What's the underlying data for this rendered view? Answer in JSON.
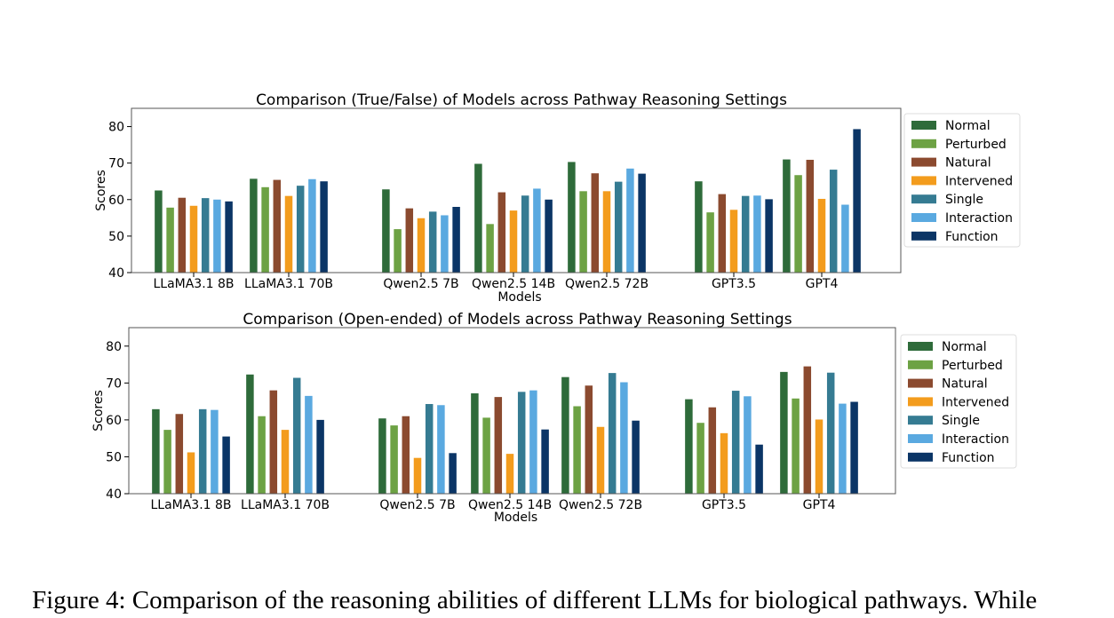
{
  "chart_data": [
    {
      "type": "bar",
      "title": "Comparison (True/False) of Models across Pathway Reasoning Settings",
      "xlabel": "Models",
      "ylabel": "Scores",
      "ylim": [
        40,
        85
      ],
      "yticks": [
        40,
        50,
        60,
        70,
        80
      ],
      "grid": false,
      "legend_position": "right",
      "categories": [
        "LLaMA3.1 8B",
        "LLaMA3.1 70B",
        "Qwen2.5 7B",
        "Qwen2.5 14B",
        "Qwen2.5 72B",
        "GPT3.5",
        "GPT4"
      ],
      "series": [
        {
          "name": "Normal",
          "color": "#2e6b3a",
          "values": [
            62.5,
            65.7,
            62.8,
            69.8,
            70.3,
            65.0,
            71.0
          ]
        },
        {
          "name": "Perturbed",
          "color": "#6da244",
          "values": [
            57.8,
            63.4,
            51.9,
            53.3,
            62.3,
            56.5,
            66.7
          ]
        },
        {
          "name": "Natural",
          "color": "#8b4a2f",
          "values": [
            60.5,
            65.4,
            57.6,
            62.0,
            67.2,
            61.5,
            70.9
          ]
        },
        {
          "name": "Intervened",
          "color": "#f39c1d",
          "values": [
            58.3,
            61.0,
            54.9,
            57.0,
            62.3,
            57.2,
            60.2
          ]
        },
        {
          "name": "Single",
          "color": "#357b92",
          "values": [
            60.4,
            63.8,
            56.7,
            61.1,
            64.9,
            61.0,
            68.2
          ]
        },
        {
          "name": "Interaction",
          "color": "#5aa9e0",
          "values": [
            60.0,
            65.6,
            55.7,
            63.0,
            68.5,
            61.1,
            58.6
          ]
        },
        {
          "name": "Function",
          "color": "#0b3566",
          "values": [
            59.5,
            65.0,
            58.0,
            60.0,
            67.1,
            60.1,
            79.3
          ]
        }
      ]
    },
    {
      "type": "bar",
      "title": "Comparison (Open-ended) of Models across Pathway Reasoning Settings",
      "xlabel": "Models",
      "ylabel": "Scores",
      "ylim": [
        40,
        85
      ],
      "yticks": [
        40,
        50,
        60,
        70,
        80
      ],
      "grid": false,
      "legend_position": "right",
      "categories": [
        "LLaMA3.1 8B",
        "LLaMA3.1 70B",
        "Qwen2.5 7B",
        "Qwen2.5 14B",
        "Qwen2.5 72B",
        "GPT3.5",
        "GPT4"
      ],
      "series": [
        {
          "name": "Normal",
          "color": "#2e6b3a",
          "values": [
            62.9,
            72.3,
            60.4,
            67.2,
            71.6,
            65.6,
            73.0
          ]
        },
        {
          "name": "Perturbed",
          "color": "#6da244",
          "values": [
            57.3,
            61.0,
            58.5,
            60.6,
            63.7,
            59.2,
            65.8
          ]
        },
        {
          "name": "Natural",
          "color": "#8b4a2f",
          "values": [
            61.6,
            68.0,
            61.0,
            66.2,
            69.3,
            63.4,
            74.5
          ]
        },
        {
          "name": "Intervened",
          "color": "#f39c1d",
          "values": [
            51.2,
            57.3,
            49.7,
            50.8,
            58.1,
            56.4,
            60.1
          ]
        },
        {
          "name": "Single",
          "color": "#357b92",
          "values": [
            62.9,
            71.4,
            64.3,
            67.6,
            72.7,
            67.9,
            72.8
          ]
        },
        {
          "name": "Interaction",
          "color": "#5aa9e0",
          "values": [
            62.7,
            66.5,
            64.0,
            68.0,
            70.2,
            66.4,
            64.4
          ]
        },
        {
          "name": "Function",
          "color": "#0b3566",
          "values": [
            55.5,
            60.0,
            51.0,
            57.4,
            59.8,
            53.3,
            64.9
          ]
        }
      ]
    }
  ],
  "caption": "Figure 4: Comparison of the reasoning abilities of different LLMs for biological pathways. While"
}
